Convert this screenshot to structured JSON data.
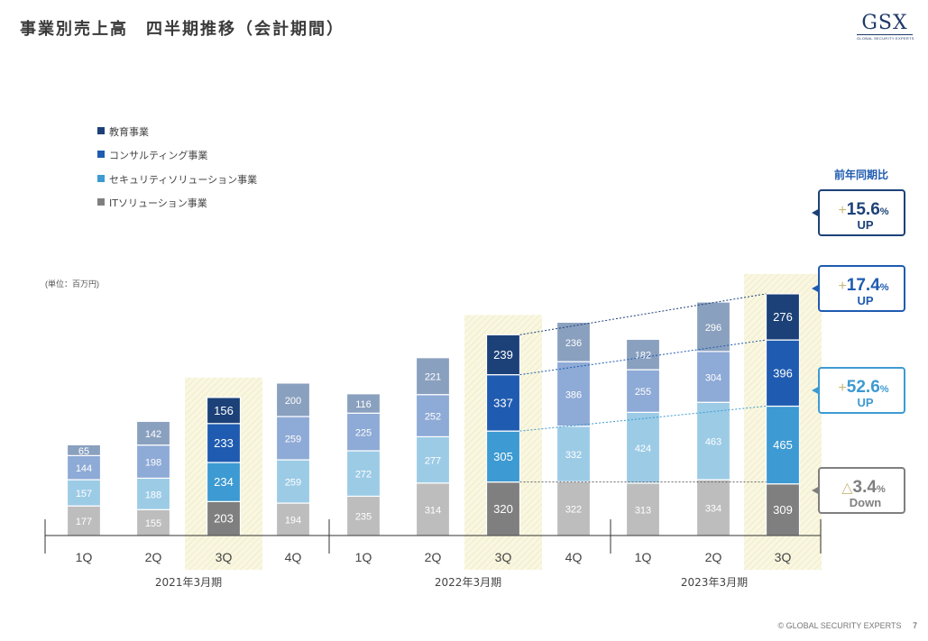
{
  "page": {
    "title": "事業別売上高　四半期推移（会計期間）",
    "logo_text": "GSX",
    "logo_subtext": "GLOBAL SECURITY EXPERTS",
    "footer_copyright": "© GLOBAL SECURITY EXPERTS",
    "page_number": "7"
  },
  "chart_data": {
    "type": "bar",
    "stacked": true,
    "unit_label": "(単位：百万円)",
    "categories": [
      "1Q",
      "2Q",
      "3Q",
      "4Q",
      "1Q",
      "2Q",
      "3Q",
      "4Q",
      "1Q",
      "2Q",
      "3Q"
    ],
    "groups": [
      {
        "label": "2021年3月期",
        "categories": [
          "1Q",
          "2Q",
          "3Q",
          "4Q"
        ]
      },
      {
        "label": "2022年3月期",
        "categories": [
          "1Q",
          "2Q",
          "3Q",
          "4Q"
        ]
      },
      {
        "label": "2023年3月期",
        "categories": [
          "1Q",
          "2Q",
          "3Q"
        ]
      }
    ],
    "highlighted_categories": [
      2,
      6,
      10
    ],
    "series": [
      {
        "name": "ITソリューション事業",
        "values": [
          177,
          155,
          203,
          194,
          235,
          314,
          320,
          322,
          313,
          334,
          309
        ],
        "color": "#bdbdbd",
        "highlight_color": "#7f7f7f"
      },
      {
        "name": "セキュリティソリューション事業",
        "values": [
          157,
          188,
          234,
          259,
          272,
          277,
          305,
          332,
          424,
          463,
          465
        ],
        "color": "#9ccbe6",
        "highlight_color": "#3d9ad2"
      },
      {
        "name": "コンサルティング事業",
        "values": [
          144,
          198,
          233,
          259,
          225,
          252,
          337,
          386,
          255,
          304,
          396
        ],
        "color": "#8eaad6",
        "highlight_color": "#1f5bb0"
      },
      {
        "name": "教育事業",
        "values": [
          65,
          142,
          156,
          200,
          116,
          221,
          239,
          236,
          182,
          296,
          276
        ],
        "color": "#8aa0bf",
        "highlight_color": "#1c4178"
      }
    ],
    "legend_position": "top-left",
    "legend_order": [
      3,
      2,
      1,
      0
    ],
    "yoy": {
      "title": "前年同期比",
      "items": [
        {
          "series": "教育事業",
          "sign": "+",
          "value": "15.6",
          "unit": "%",
          "direction": "UP",
          "color": "#1c4178"
        },
        {
          "series": "コンサルティング事業",
          "sign": "+",
          "value": "17.4",
          "unit": "%",
          "direction": "UP",
          "color": "#1f5bb0"
        },
        {
          "series": "セキュリティソリューション事業",
          "sign": "+",
          "value": "52.6",
          "unit": "%",
          "direction": "UP",
          "color": "#3d9ad2"
        },
        {
          "series": "ITソリューション事業",
          "sign": "△",
          "value": "3.4",
          "unit": "%",
          "direction": "Down",
          "color": "#7f7f7f"
        }
      ],
      "sign_color": "#c8b87a",
      "title_color": "#1f5bb0"
    }
  }
}
